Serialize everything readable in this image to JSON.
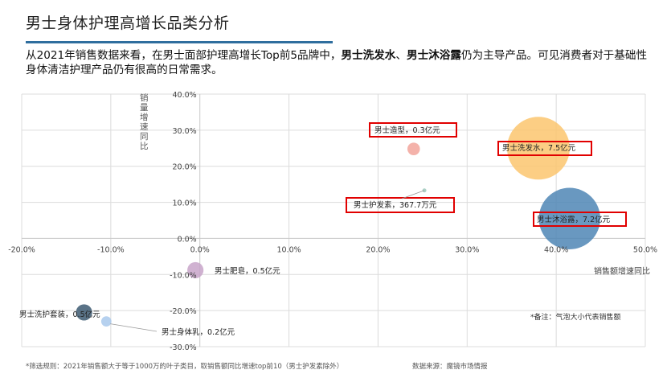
{
  "page": {
    "title": "男士身体护理高增长品类分析",
    "intro": {
      "part1": "从2021年销售数据来看，在男士面部护理高增长Top前5品牌中，",
      "bold1": "男士洗发水",
      "sep": "、",
      "bold2": "男士沐浴露",
      "part2": "仍为主导产品。可见消费者对于基础性身体清洁护理产品仍有很高的日常需求。"
    },
    "footnote_left": "*筛选规则：2021年销售额大于等于1000万的叶子类目，取销售额同比增速top前10（男士护发素除外）",
    "footnote_right": "数据来源：魔镜市场情报",
    "bubble_note": "*备注：气泡大小代表销售额"
  },
  "chart_data": {
    "type": "scatter",
    "title": "",
    "xlabel": "销售额增速同比",
    "ylabel": "销量增速同比",
    "xlim": [
      -20,
      50
    ],
    "ylim": [
      -30,
      40
    ],
    "x_ticks": [
      "-20.0%",
      "-10.0%",
      "0.0%",
      "10.0%",
      "20.0%",
      "30.0%",
      "40.0%",
      "50.0%"
    ],
    "y_ticks": [
      "40.0%",
      "30.0%",
      "20.0%",
      "10.0%",
      "0.0%",
      "-10.0%",
      "-20.0%",
      "-30.0%"
    ],
    "grid": true,
    "bubble_size_meaning": "销售额",
    "points": [
      {
        "label": "男士洗发水，7.5亿元",
        "x": 38.0,
        "y": 25.0,
        "size": 7.5,
        "color": "#fbc56f",
        "highlight": true
      },
      {
        "label": "男士沐浴露，7.2亿元",
        "x": 41.5,
        "y": 5.5,
        "size": 7.2,
        "color": "#4f86b5",
        "highlight": true
      },
      {
        "label": "男士造型，0.3亿元",
        "x": 24.0,
        "y": 24.8,
        "size": 0.3,
        "color": "#f2a49b",
        "highlight": true
      },
      {
        "label": "男士护发素，367.7万元",
        "x": 25.2,
        "y": 13.3,
        "size": 0.037,
        "color": "#9fc9bd",
        "highlight": true
      },
      {
        "label": "男士肥皂，0.5亿元",
        "x": -0.5,
        "y": -8.8,
        "size": 0.5,
        "color": "#c8a5c9",
        "highlight": false
      },
      {
        "label": "男士洗护套装，0.5亿元",
        "x": -13.0,
        "y": -20.5,
        "size": 0.5,
        "color": "#3d5a72",
        "highlight": false
      },
      {
        "label": "男士身体乳，0.2亿元",
        "x": -10.5,
        "y": -23.0,
        "size": 0.2,
        "color": "#a9c9ec",
        "highlight": false
      }
    ]
  }
}
